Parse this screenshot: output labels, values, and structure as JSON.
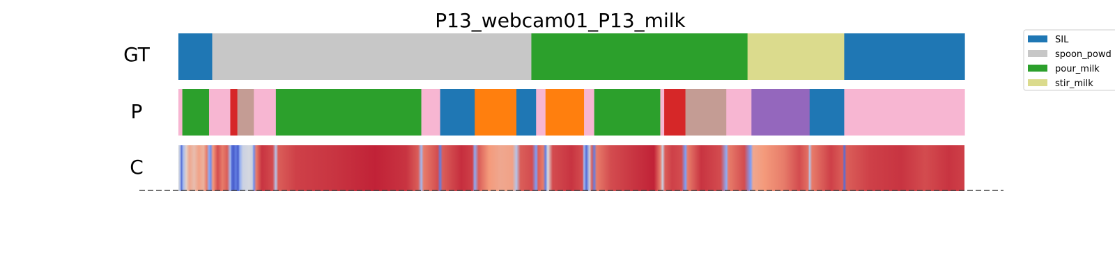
{
  "chart_data": {
    "type": "segmentation",
    "title": "P13_webcam01_P13_milk",
    "colors": {
      "SIL": "#1f77b4",
      "spoon_powder": "#c7c7c7",
      "pour_milk": "#2ca02c",
      "stir_milk": "#dbdb8d",
      "orange": "#ff7f0e",
      "red": "#d62728",
      "purple": "#9467bd",
      "brown": "#c49c94",
      "pink": "#f7b6d2"
    },
    "legend": [
      {
        "label": "SIL",
        "key": "SIL"
      },
      {
        "label": "spoon_powd",
        "key": "spoon_powder"
      },
      {
        "label": "pour_milk",
        "key": "pour_milk"
      },
      {
        "label": "stir_milk",
        "key": "stir_milk"
      }
    ],
    "rows": [
      {
        "label": "GT",
        "segments": [
          {
            "start": 0.0,
            "end": 0.043,
            "key": "SIL"
          },
          {
            "start": 0.043,
            "end": 0.449,
            "key": "spoon_powder"
          },
          {
            "start": 0.449,
            "end": 0.724,
            "key": "pour_milk"
          },
          {
            "start": 0.724,
            "end": 0.847,
            "key": "stir_milk"
          },
          {
            "start": 0.847,
            "end": 1.0,
            "key": "SIL"
          }
        ]
      },
      {
        "label": "P",
        "segments": [
          {
            "start": 0.0,
            "end": 0.005,
            "key": "pink"
          },
          {
            "start": 0.005,
            "end": 0.039,
            "key": "pour_milk"
          },
          {
            "start": 0.039,
            "end": 0.066,
            "key": "pink"
          },
          {
            "start": 0.066,
            "end": 0.075,
            "key": "red"
          },
          {
            "start": 0.075,
            "end": 0.096,
            "key": "brown"
          },
          {
            "start": 0.096,
            "end": 0.124,
            "key": "pink"
          },
          {
            "start": 0.124,
            "end": 0.309,
            "key": "pour_milk"
          },
          {
            "start": 0.309,
            "end": 0.333,
            "key": "pink"
          },
          {
            "start": 0.333,
            "end": 0.377,
            "key": "SIL"
          },
          {
            "start": 0.377,
            "end": 0.43,
            "key": "orange"
          },
          {
            "start": 0.43,
            "end": 0.455,
            "key": "SIL"
          },
          {
            "start": 0.455,
            "end": 0.467,
            "key": "pink"
          },
          {
            "start": 0.467,
            "end": 0.516,
            "key": "orange"
          },
          {
            "start": 0.516,
            "end": 0.529,
            "key": "pink"
          },
          {
            "start": 0.529,
            "end": 0.613,
            "key": "pour_milk"
          },
          {
            "start": 0.613,
            "end": 0.618,
            "key": "pink"
          },
          {
            "start": 0.618,
            "end": 0.645,
            "key": "red"
          },
          {
            "start": 0.645,
            "end": 0.697,
            "key": "brown"
          },
          {
            "start": 0.697,
            "end": 0.729,
            "key": "pink"
          },
          {
            "start": 0.729,
            "end": 0.803,
            "key": "purple"
          },
          {
            "start": 0.803,
            "end": 0.847,
            "key": "SIL"
          },
          {
            "start": 0.847,
            "end": 1.0,
            "key": "pink"
          }
        ]
      },
      {
        "label": "C",
        "confidence": [
          [
            0.0,
            0.5
          ],
          [
            0.002,
            0.4
          ],
          [
            0.004,
            0.1
          ],
          [
            0.006,
            0.35
          ],
          [
            0.01,
            0.55
          ],
          [
            0.014,
            0.7
          ],
          [
            0.02,
            0.62
          ],
          [
            0.026,
            0.72
          ],
          [
            0.032,
            0.66
          ],
          [
            0.036,
            0.8
          ],
          [
            0.039,
            0.3
          ],
          [
            0.041,
            0.2
          ],
          [
            0.044,
            0.75
          ],
          [
            0.05,
            0.88
          ],
          [
            0.056,
            0.8
          ],
          [
            0.062,
            0.85
          ],
          [
            0.066,
            0.35
          ],
          [
            0.068,
            0.1
          ],
          [
            0.07,
            0.05
          ],
          [
            0.073,
            0.15
          ],
          [
            0.076,
            0.05
          ],
          [
            0.078,
            0.3
          ],
          [
            0.082,
            0.45
          ],
          [
            0.09,
            0.48
          ],
          [
            0.094,
            0.45
          ],
          [
            0.096,
            0.2
          ],
          [
            0.099,
            0.8
          ],
          [
            0.106,
            0.92
          ],
          [
            0.114,
            0.9
          ],
          [
            0.12,
            0.88
          ],
          [
            0.124,
            0.4
          ],
          [
            0.127,
            0.85
          ],
          [
            0.15,
            0.9
          ],
          [
            0.2,
            0.92
          ],
          [
            0.25,
            0.95
          ],
          [
            0.29,
            0.92
          ],
          [
            0.305,
            0.85
          ],
          [
            0.309,
            0.35
          ],
          [
            0.312,
            0.8
          ],
          [
            0.33,
            0.88
          ],
          [
            0.333,
            0.15
          ],
          [
            0.336,
            0.85
          ],
          [
            0.36,
            0.93
          ],
          [
            0.374,
            0.9
          ],
          [
            0.377,
            0.3
          ],
          [
            0.382,
            0.85
          ],
          [
            0.395,
            0.75
          ],
          [
            0.41,
            0.7
          ],
          [
            0.425,
            0.72
          ],
          [
            0.43,
            0.4
          ],
          [
            0.435,
            0.85
          ],
          [
            0.45,
            0.88
          ],
          [
            0.455,
            0.25
          ],
          [
            0.458,
            0.85
          ],
          [
            0.464,
            0.8
          ],
          [
            0.467,
            0.15
          ],
          [
            0.47,
            0.5
          ],
          [
            0.476,
            0.88
          ],
          [
            0.5,
            0.92
          ],
          [
            0.514,
            0.88
          ],
          [
            0.516,
            0.35
          ],
          [
            0.519,
            0.1
          ],
          [
            0.523,
            0.45
          ],
          [
            0.526,
            0.85
          ],
          [
            0.529,
            0.15
          ],
          [
            0.532,
            0.8
          ],
          [
            0.55,
            0.88
          ],
          [
            0.58,
            0.92
          ],
          [
            0.605,
            0.95
          ],
          [
            0.613,
            0.8
          ],
          [
            0.616,
            0.45
          ],
          [
            0.619,
            0.85
          ],
          [
            0.628,
            0.9
          ],
          [
            0.64,
            0.88
          ],
          [
            0.645,
            0.25
          ],
          [
            0.648,
            0.8
          ],
          [
            0.665,
            0.92
          ],
          [
            0.69,
            0.88
          ],
          [
            0.697,
            0.3
          ],
          [
            0.7,
            0.8
          ],
          [
            0.72,
            0.88
          ],
          [
            0.728,
            0.25
          ],
          [
            0.731,
            0.7
          ],
          [
            0.745,
            0.75
          ],
          [
            0.77,
            0.8
          ],
          [
            0.79,
            0.88
          ],
          [
            0.801,
            0.82
          ],
          [
            0.803,
            0.4
          ],
          [
            0.806,
            0.8
          ],
          [
            0.83,
            0.9
          ],
          [
            0.845,
            0.85
          ],
          [
            0.847,
            0.1
          ],
          [
            0.85,
            0.85
          ],
          [
            0.88,
            0.9
          ],
          [
            0.92,
            0.92
          ],
          [
            0.95,
            0.88
          ],
          [
            0.98,
            0.92
          ],
          [
            1.0,
            0.9
          ]
        ]
      }
    ]
  }
}
